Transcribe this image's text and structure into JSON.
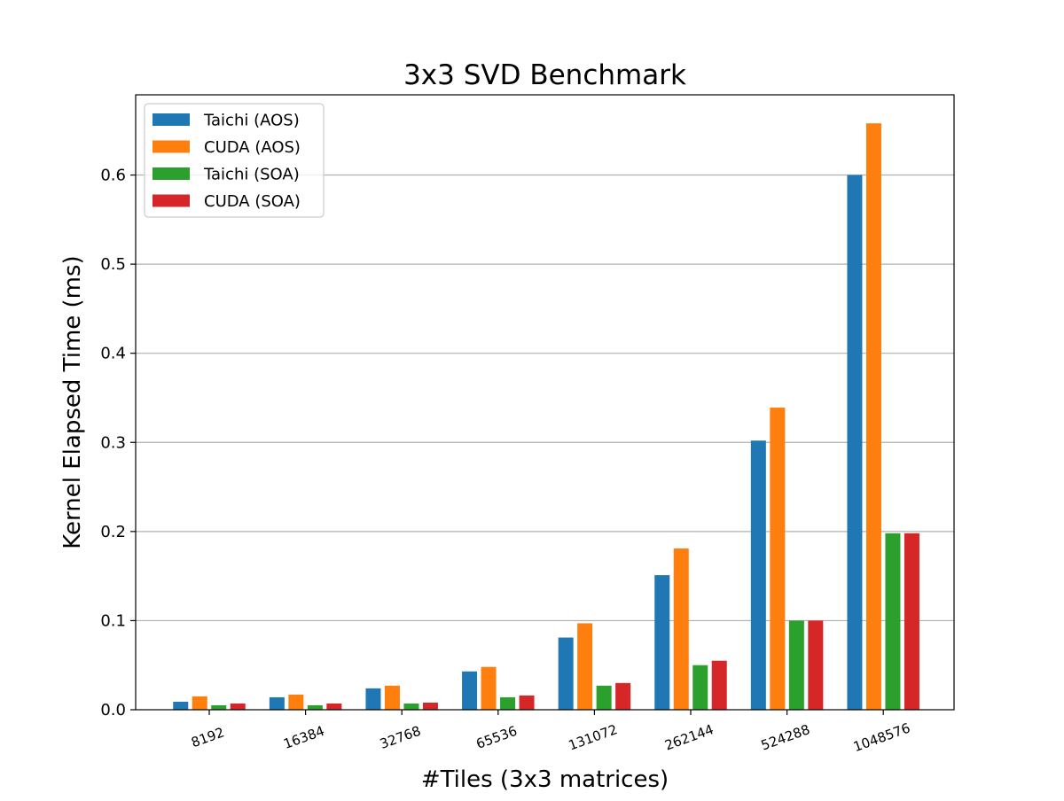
{
  "chart_data": {
    "type": "bar",
    "title": "3x3 SVD Benchmark",
    "xlabel": "#Tiles (3x3 matrices)",
    "ylabel": "Kernel Elapsed Time (ms)",
    "categories": [
      "8192",
      "16384",
      "32768",
      "65536",
      "131072",
      "262144",
      "524288",
      "1048576"
    ],
    "series": [
      {
        "name": "Taichi (AOS)",
        "color": "#1f77b4",
        "values": [
          0.009,
          0.014,
          0.024,
          0.043,
          0.081,
          0.151,
          0.302,
          0.6
        ]
      },
      {
        "name": "CUDA (AOS)",
        "color": "#ff7f0e",
        "values": [
          0.015,
          0.017,
          0.027,
          0.048,
          0.097,
          0.181,
          0.339,
          0.658
        ]
      },
      {
        "name": "Taichi (SOA)",
        "color": "#2ca02c",
        "values": [
          0.005,
          0.005,
          0.007,
          0.014,
          0.027,
          0.05,
          0.1,
          0.198
        ]
      },
      {
        "name": "CUDA (SOA)",
        "color": "#d62728",
        "values": [
          0.007,
          0.007,
          0.008,
          0.016,
          0.03,
          0.055,
          0.1,
          0.198
        ]
      }
    ],
    "ylim": [
      0,
      0.69
    ],
    "yticks": [
      "0.0",
      "0.1",
      "0.2",
      "0.3",
      "0.4",
      "0.5",
      "0.6"
    ],
    "ytick_values": [
      0,
      0.1,
      0.2,
      0.3,
      0.4,
      0.5,
      0.6
    ],
    "grid": "horizontal",
    "legend_position": "upper-left",
    "xtick_rotation_deg": -20
  }
}
